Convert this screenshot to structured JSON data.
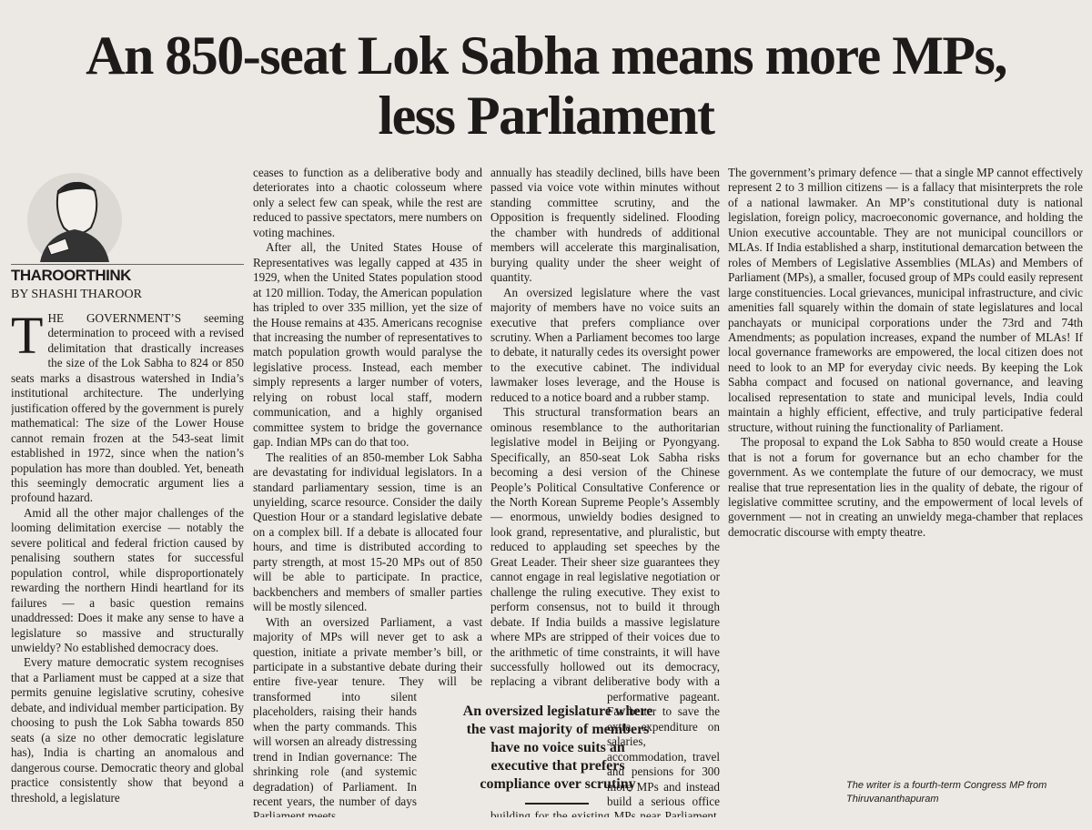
{
  "header": {
    "title": "An 850-seat Lok Sabha means more MPs, less Parliament",
    "column_name": "THAROORTHINK",
    "byline": "BY SHASHI THAROOR"
  },
  "columns": [
    {
      "paragraphs": [
        "THE GOVERNMENT’S seeming determination to proceed with a revised delimitation that drastically increases the size of the Lok Sabha to 824 or 850 seats marks a disastrous watershed in India’s institutional architecture. The underlying justification offered by the government is purely mathematical: The size of the Lower House cannot remain frozen at the 543-seat limit established in 1972, since when the nation’s population has more than doubled. Yet, beneath this seemingly democratic argument lies a profound hazard.",
        "Amid all the other major challenges of the looming delimitation exercise — notably the severe political and federal friction caused by penalising southern states for successful population control, while disproportionately rewarding the northern Hindi heartland for its failures — a basic question remains unaddressed: Does it make any sense to have a legislature so massive and structurally unwieldy? No established democracy does.",
        "Every mature democratic system recognises that a Parliament must be capped at a size that permits genuine legislative scrutiny, cohesive debate, and individual member participation. By choosing to push the Lok Sabha towards 850 seats (a size no other democratic legislature has), India is charting an anomalous and dangerous course. Democratic theory and global practice consistently show that beyond a threshold, a legislature"
      ]
    },
    {
      "paragraphs": [
        "ceases to function as a deliberative body and deteriorates into a chaotic colosseum where only a select few can speak, while the rest are reduced to passive spectators, mere numbers on voting machines.",
        "After all, the United States House of Representatives was legally capped at 435 in 1929, when the United States population stood at 120 million. Today, the American population has tripled to over 335 million, yet the size of the House remains at 435. Americans recognise that increasing the number of representatives to match population growth would paralyse the legislative process. Instead, each member simply represents a larger number of voters, relying on robust local staff, modern communication, and a highly organised committee system to bridge the governance gap. Indian MPs can do that too.",
        "The realities of an 850-member Lok Sabha are devastating for individual legislators. In a standard parliamentary session, time is an unyielding, scarce resource. Consider the daily Question Hour or a standard legislative debate on a complex bill. If a debate is allocated four hours, and time is distributed according to party strength, at most 15-20 MPs out of 850 will be able to participate. In practice, backbenchers and members of smaller parties will be mostly silenced.",
        "With an oversized Parliament, a vast majority of MPs will never get to ask a question, initiate a private member’s bill, or participate in a substantive debate during their entire five-year tenure. They will be transformed into silent placeholders, raising their hands when the party commands. This will worsen an already distressing trend in Indian governance: The shrinking role (and systemic degradation) of Parliament. In recent years, the number of days Parliament meets"
      ]
    },
    {
      "paragraphs": [
        "annually has steadily declined, bills have been passed via voice vote within minutes without standing committee scrutiny, and the Opposition is frequently sidelined. Flooding the chamber with hundreds of additional members will accelerate this marginalisation, burying quality under the sheer weight of quantity.",
        "An oversized legislature where the vast majority of members have no voice suits an executive that prefers compliance over scrutiny. When a Parliament becomes too large to debate, it naturally cedes its oversight power to the executive cabinet. The individual lawmaker loses leverage, and the House is reduced to a notice board and a rubber stamp.",
        "This structural transformation bears an ominous resemblance to the authoritarian legislative model in Beijing or Pyongyang. Specifically, an 850-seat Lok Sabha risks becoming a desi version of the Chinese People’s Political Consultative Conference or the North Korean Supreme People’s Assembly — enormous, unwieldy bodies designed to look grand, representative, and pluralistic, but reduced to applauding set speeches by the Great Leader. Their sheer size guarantees they cannot engage in real legislative negotiation or challenge the ruling executive. They exist to perform consensus, not to build it through debate. If India builds a massive legislature where MPs are stripped of their voices due to the arithmetic of time constraints, it will have successfully hollowed out its democracy, replacing a vibrant deliberative body with a performative pageant. Far better to save the extra expenditure on salaries, accommodation, travel and pensions for 300 more MPs and instead build a serious office building for the existing MPs near Parliament, as every other democracy provides its legislators."
      ]
    },
    {
      "paragraphs": [
        "The government’s primary defence — that a single MP cannot effectively represent 2 to 3 million citizens — is a fallacy that misinterprets the role of a national lawmaker. An MP’s constitutional duty is national legislation, foreign policy, macroeconomic governance, and holding the Union executive accountable. They are not municipal councillors or MLAs. If India established a sharp, institutional demarcation between the roles of Members of Legislative Assemblies (MLAs) and Members of Parliament (MPs), a smaller, focused group of MPs could easily represent large constituencies. Local grievances, municipal infrastructure, and civic amenities fall squarely within the domain of state legislatures and local panchayats or municipal corporations under the 73rd and 74th Amendments; as population increases, expand the number of MLAs! If local governance frameworks are empowered, the local citizen does not need to look to an MP for everyday civic needs. By keeping the Lok Sabha compact and focused on national governance, and leaving localised representation to state and municipal levels, India could maintain a highly efficient, effective, and truly participative federal structure, without ruining the functionality of Parliament.",
        "The proposal to expand the Lok Sabha to 850 would create a House that is not a forum for governance but an echo chamber for the government. As we contemplate the future of our democracy, we must realise that true representation lies in the quality of debate, the rigour of legislative committee scrutiny, and the empowerment of local levels of government — not in creating an unwieldy mega-chamber that replaces democratic discourse with empty theatre."
      ]
    }
  ],
  "pull_quote": "An oversized legislature where the vast majority of members have no voice suits an executive that prefers compliance over scrutiny",
  "footer": "The writer is a fourth-term Congress MP from Thiruvananthapuram"
}
